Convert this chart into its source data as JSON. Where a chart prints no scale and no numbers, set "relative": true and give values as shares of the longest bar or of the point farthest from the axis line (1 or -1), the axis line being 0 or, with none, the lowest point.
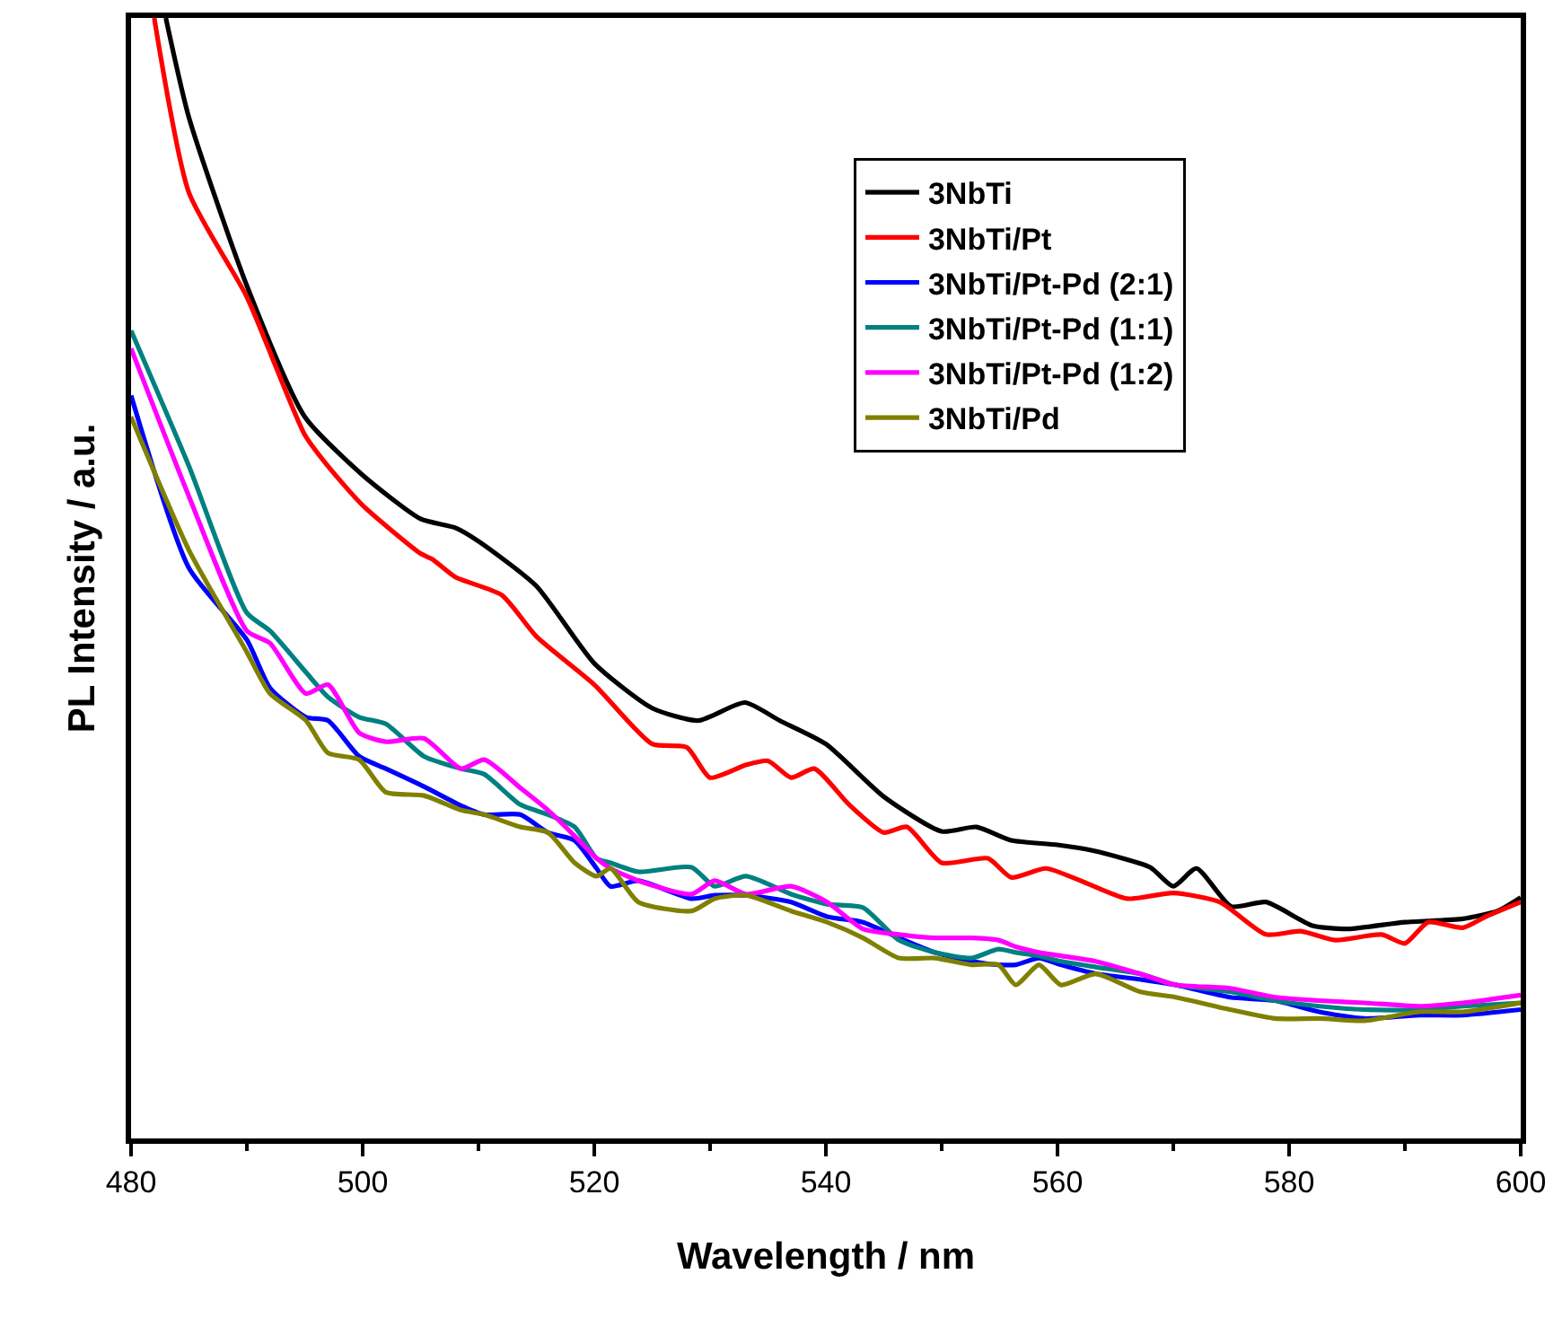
{
  "chart_data": {
    "type": "line",
    "xlabel": "Wavelength / nm",
    "ylabel": "PL Intensity / a.u.",
    "relative": true,
    "xlim": [
      480,
      600
    ],
    "xticks": [
      480,
      500,
      520,
      540,
      560,
      580,
      600
    ],
    "legend": "top right",
    "line_style": "solid",
    "series": [
      {
        "name": "3NbTi",
        "color": "#000000",
        "x": [
          483,
          485,
          490,
          495,
          500,
          505,
          508,
          510,
          515,
          520,
          525,
          529,
          533,
          536,
          540,
          545,
          550,
          553,
          556,
          560,
          563,
          568,
          570,
          572,
          575,
          578,
          582,
          585,
          590,
          595,
          598,
          600
        ],
        "values": [
          1.0,
          0.911,
          0.761,
          0.644,
          0.592,
          0.553,
          0.545,
          0.533,
          0.493,
          0.424,
          0.384,
          0.373,
          0.389,
          0.373,
          0.352,
          0.305,
          0.274,
          0.278,
          0.266,
          0.262,
          0.257,
          0.242,
          0.225,
          0.241,
          0.207,
          0.211,
          0.19,
          0.187,
          0.193,
          0.196,
          0.203,
          0.215
        ]
      },
      {
        "name": "3NbTi/Pt",
        "color": "#ff0000",
        "x": [
          482,
          485,
          490,
          495,
          497,
          500,
          505,
          506,
          508,
          512,
          515,
          520,
          525,
          528,
          530,
          533,
          535,
          537,
          539,
          542,
          545,
          547,
          550,
          554,
          556,
          559,
          562,
          566,
          570,
          574,
          578,
          581,
          584,
          588,
          590,
          592,
          595,
          597,
          600
        ],
        "values": [
          1.0,
          0.844,
          0.751,
          0.628,
          0.6,
          0.565,
          0.522,
          0.517,
          0.501,
          0.485,
          0.448,
          0.405,
          0.352,
          0.349,
          0.322,
          0.333,
          0.337,
          0.322,
          0.33,
          0.298,
          0.273,
          0.278,
          0.246,
          0.25,
          0.233,
          0.241,
          0.23,
          0.214,
          0.219,
          0.211,
          0.182,
          0.185,
          0.177,
          0.182,
          0.174,
          0.193,
          0.188,
          0.198,
          0.211
        ]
      },
      {
        "name": "3NbTi/Pt-Pd (2:1)",
        "color": "#0000ff",
        "x": [
          480,
          485,
          490,
          492,
          495.1,
          497,
          499.7,
          502,
          505.3,
          508.5,
          510.5,
          513.6,
          516,
          518.3,
          520.2,
          521.4,
          523.8,
          528.4,
          530.4,
          533.1,
          537,
          540.1,
          543.2,
          546.3,
          549.4,
          552.6,
          554.9,
          556.4,
          558.4,
          560.3,
          563.3,
          567.1,
          570.2,
          574.9,
          578.8,
          582.6,
          586.5,
          591.2,
          595,
          600
        ],
        "values": [
          0.663,
          0.509,
          0.445,
          0.402,
          0.376,
          0.373,
          0.341,
          0.33,
          0.314,
          0.297,
          0.289,
          0.289,
          0.273,
          0.266,
          0.241,
          0.225,
          0.23,
          0.214,
          0.217,
          0.217,
          0.211,
          0.198,
          0.193,
          0.179,
          0.166,
          0.158,
          0.155,
          0.155,
          0.161,
          0.155,
          0.147,
          0.142,
          0.137,
          0.126,
          0.123,
          0.113,
          0.107,
          0.11,
          0.11,
          0.115
        ]
      },
      {
        "name": "3NbTi/Pt-Pd (1:1)",
        "color": "#008080",
        "x": [
          480,
          485,
          490,
          492,
          495.1,
          497,
          499.7,
          502,
          505.3,
          508.5,
          510.5,
          513.6,
          516,
          518.3,
          520.2,
          521.4,
          523.8,
          528.4,
          530.4,
          533.1,
          537,
          540.1,
          543.2,
          546.3,
          549.4,
          552.6,
          554.9,
          556.4,
          558.4,
          560.3,
          563.3,
          567.1,
          570.2,
          574.9,
          578.8,
          582.6,
          586.5,
          591.2,
          595,
          600
        ],
        "values": [
          0.721,
          0.6,
          0.469,
          0.453,
          0.416,
          0.394,
          0.376,
          0.37,
          0.341,
          0.33,
          0.325,
          0.298,
          0.289,
          0.278,
          0.25,
          0.246,
          0.238,
          0.242,
          0.225,
          0.234,
          0.218,
          0.209,
          0.206,
          0.177,
          0.166,
          0.161,
          0.169,
          0.166,
          0.163,
          0.158,
          0.153,
          0.147,
          0.137,
          0.131,
          0.123,
          0.118,
          0.115,
          0.115,
          0.118,
          0.121
        ]
      },
      {
        "name": "3NbTi/Pt-Pd (1:2)",
        "color": "#ff00ff",
        "x": [
          480,
          485,
          490,
          492,
          495.1,
          497,
          499.7,
          502,
          505.3,
          508.5,
          510.5,
          513.6,
          516,
          518.3,
          520.2,
          521.4,
          523.8,
          528.4,
          530.4,
          533.1,
          537,
          540.1,
          543.2,
          546.3,
          549.4,
          552.6,
          554.9,
          556.4,
          558.4,
          560.3,
          563.3,
          567.1,
          570.2,
          574.9,
          578.8,
          582.6,
          586.5,
          591.2,
          595,
          600
        ],
        "values": [
          0.705,
          0.573,
          0.453,
          0.442,
          0.397,
          0.405,
          0.362,
          0.354,
          0.357,
          0.33,
          0.338,
          0.313,
          0.293,
          0.27,
          0.25,
          0.241,
          0.23,
          0.218,
          0.23,
          0.218,
          0.225,
          0.211,
          0.187,
          0.182,
          0.179,
          0.179,
          0.177,
          0.171,
          0.166,
          0.163,
          0.158,
          0.147,
          0.137,
          0.134,
          0.126,
          0.123,
          0.121,
          0.118,
          0.121,
          0.128
        ]
      },
      {
        "name": "3NbTi/Pd",
        "color": "#808000",
        "x": [
          480,
          485,
          490,
          492,
          495.1,
          497,
          499.7,
          502,
          505.3,
          508.5,
          510.5,
          513.6,
          516,
          518.3,
          520.2,
          521.4,
          523.8,
          528.4,
          530.4,
          533.1,
          537,
          540.1,
          543.2,
          546.3,
          549.4,
          552.6,
          554.9,
          556.4,
          558.4,
          560.3,
          563.3,
          567.1,
          570.2,
          574.9,
          578.8,
          582.6,
          586.5,
          591.2,
          595,
          600
        ],
        "values": [
          0.644,
          0.525,
          0.434,
          0.397,
          0.373,
          0.344,
          0.338,
          0.309,
          0.306,
          0.293,
          0.289,
          0.278,
          0.273,
          0.246,
          0.234,
          0.241,
          0.211,
          0.203,
          0.214,
          0.217,
          0.203,
          0.193,
          0.179,
          0.161,
          0.161,
          0.155,
          0.155,
          0.137,
          0.155,
          0.137,
          0.147,
          0.131,
          0.126,
          0.115,
          0.107,
          0.107,
          0.105,
          0.113,
          0.113,
          0.121
        ]
      }
    ]
  }
}
